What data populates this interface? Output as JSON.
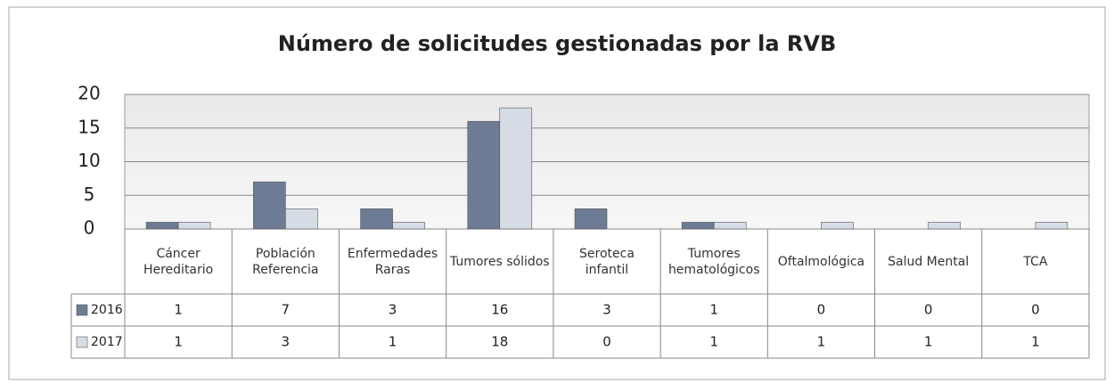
{
  "chart_data": {
    "type": "bar",
    "title": "Número de solicitudes gestionadas por la RVB",
    "categories": [
      "Cáncer Hereditario",
      "Población Referencia",
      "Enfermedades Raras",
      "Tumores sólidos",
      "Seroteca infantil",
      "Tumores hematológicos",
      "Oftalmológica",
      "Salud Mental",
      "TCA"
    ],
    "series": [
      {
        "name": "2016",
        "color": "#6d7b95",
        "values": [
          1,
          7,
          3,
          16,
          3,
          1,
          0,
          0,
          0
        ]
      },
      {
        "name": "2017",
        "color": "#d6dce6",
        "values": [
          1,
          3,
          1,
          18,
          0,
          1,
          1,
          1,
          1
        ]
      }
    ],
    "ylim": [
      0,
      20
    ],
    "yticks": [
      0,
      5,
      10,
      15,
      20
    ],
    "grid": true
  }
}
